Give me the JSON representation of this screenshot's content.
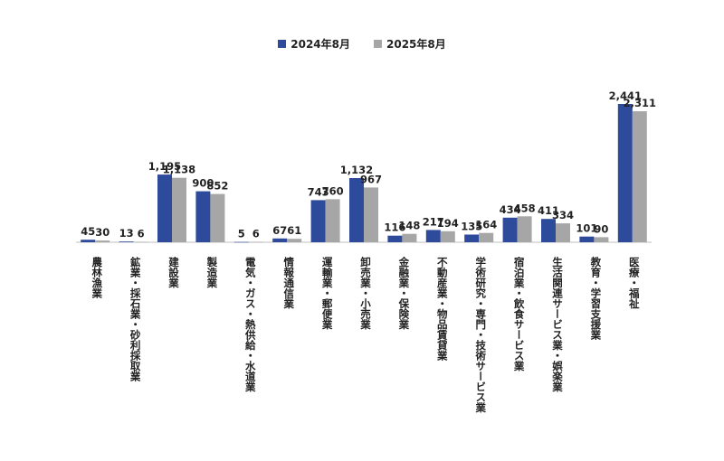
{
  "chart_data": {
    "type": "bar",
    "categories": [
      "農林漁業",
      "鉱業・採石業・砂利採取業",
      "建設業",
      "製造業",
      "電気・ガス・熱供給・水道業",
      "情報通信業",
      "運輸業・郵便業",
      "卸売業・小売業",
      "金融業・保険業",
      "不動産業・物品賃貸業",
      "学術研究・専門・技術サービス業",
      "宿泊業・飲食サービス業",
      "生活関連サービス業・娯楽業",
      "教育・学習支援業",
      "医療・福祉"
    ],
    "series": [
      {
        "name": "2024年8月",
        "color": "#2E4A9B",
        "values": [
          45,
          13,
          1195,
          900,
          5,
          67,
          743,
          1132,
          116,
          217,
          135,
          434,
          411,
          101,
          2441
        ]
      },
      {
        "name": "2025年8月",
        "color": "#A6A6A6",
        "values": [
          30,
          6,
          1138,
          852,
          6,
          61,
          760,
          967,
          148,
          194,
          164,
          458,
          334,
          90,
          2311
        ]
      }
    ],
    "data_labels_2024": [
      "45",
      "13",
      "1,195",
      "900",
      "5",
      "67",
      "743",
      "1,132",
      "116",
      "217",
      "135",
      "434",
      "411",
      "101",
      "2,441"
    ],
    "data_labels_2025": [
      "30",
      "6",
      "1,138",
      "852",
      "6",
      "61",
      "760",
      "967",
      "148",
      "194",
      "164",
      "458",
      "334",
      "90",
      "2,311"
    ],
    "title": "",
    "xlabel": "",
    "ylabel": "",
    "ylim": [
      0,
      2800
    ],
    "grid": false,
    "legend_position": "top-center"
  }
}
